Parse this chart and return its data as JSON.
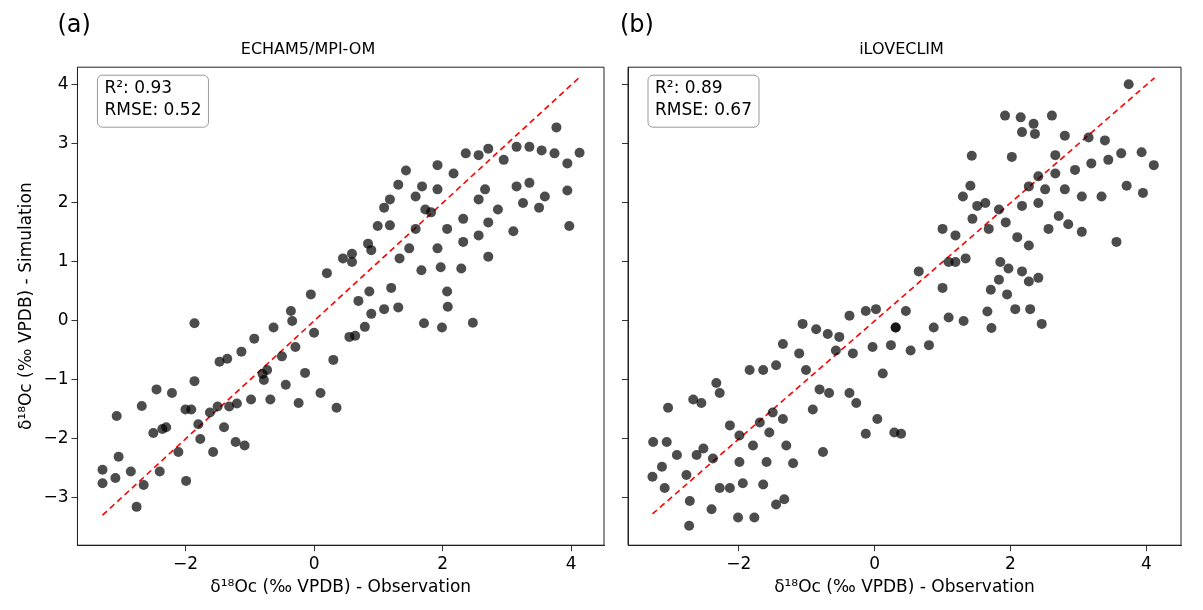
{
  "chart_data": [
    {
      "type": "scatter",
      "title": "ECHAM5/MPI-OM",
      "xlabel": "δ¹⁸Oc (‰ VPDB) - Observation",
      "ylabel": "δ¹⁸Oc (‰ VPDB) - Simulation",
      "annotations": [
        "(a)",
        "R²: 0.93",
        "RMSE: 0.52"
      ],
      "xlim": [
        -3.68,
        4.51
      ],
      "ylim": [
        -3.8,
        4.3
      ],
      "xticks": [
        -2,
        0,
        2,
        4
      ],
      "yticks": [
        -3,
        -2,
        -1,
        0,
        1,
        2,
        3,
        4
      ],
      "grid": false,
      "legend": false,
      "marker": "circle",
      "series": [
        {
          "color": "#000000",
          "x": [
            -3.29,
            -3.29,
            -3.07,
            -2.76,
            -3.09,
            -2.85,
            -2.65,
            -2.4,
            -1.99,
            -3.04,
            -2.68,
            -2.45,
            -1.86,
            -1.86,
            -2.21,
            -1.91,
            -1.62,
            -1.32,
            -2.36,
            -1.77,
            -1.57,
            -1.08,
            -1.22,
            -2.11,
            -1.47,
            -1.35,
            -1.13,
            -0.93,
            -0.63,
            -0.34,
            -0.36,
            -0.05,
            0.2,
            0.45,
            0.59,
            0.55,
            0.3,
            0.1,
            0.35,
            -0.24,
            -0.68,
            -0.78,
            -0.14,
            -0.44,
            -0.98,
            -0.73,
            -0.29,
            0.84,
            0.99,
            1.09,
            1.31,
            1.43,
            1.18,
            1.33,
            1.67,
            1.97,
            2.29,
            2.07,
            2.08,
            1.71,
            1.99,
            2.47,
            2.71,
            0.64,
            0.79,
            0.89,
            1.09,
            1.31,
            1.2,
            0.69,
            0.86,
            1.58,
            1.82,
            2.07,
            2.32,
            1.92,
            2.17,
            1.92,
            2.36,
            2.56,
            2.71,
            2.95,
            3.15,
            3.35,
            3.54,
            3.74,
            3.94,
            4.13,
            3.77,
            3.94,
            3.97,
            3.1,
            3.5,
            3.25,
            2.86,
            2.66,
            2.56,
            3.15,
            3.35,
            3.59,
            2.56,
            2.71,
            2.32,
            1.73,
            1.58,
            1.68,
            1.18,
            1.48,
            1.92,
            0.89,
            0.59,
            -2.0,
            -1.5,
            -1.8,
            -1.4,
            -2.3,
            -2.5,
            -1.2,
            -0.8,
            -0.5,
            0.0
          ],
          "values": [
            -2.52,
            -2.75,
            -1.61,
            -3.15,
            -2.66,
            -2.55,
            -2.78,
            -2.55,
            -2.71,
            -2.3,
            -1.44,
            -1.16,
            -0.04,
            -1.02,
            -1.22,
            -1.5,
            -1.55,
            -1.45,
            -1.83,
            -2.0,
            -2.22,
            -2.11,
            -2.05,
            -2.22,
            -0.69,
            -0.64,
            -0.52,
            -0.3,
            -0.11,
            0.0,
            0.17,
            0.45,
            0.81,
            1.06,
            1.14,
            -0.27,
            -0.66,
            -1.22,
            -1.47,
            -1.39,
            -1.33,
            -1.0,
            -0.88,
            -1.08,
            -1.33,
            -0.83,
            -0.44,
            1.31,
            1.61,
            1.92,
            2.31,
            2.55,
            1.62,
            1.06,
            0.86,
            0.91,
            0.89,
            0.5,
            0.24,
            -0.04,
            -0.11,
            -0.03,
            1.09,
            -0.25,
            -0.1,
            0.12,
            0.2,
            0.23,
            0.56,
            0.34,
            0.5,
            1.56,
            1.84,
            1.56,
            1.73,
            2.23,
            2.5,
            2.64,
            2.84,
            2.81,
            2.92,
            2.73,
            2.95,
            2.95,
            2.89,
            2.84,
            2.67,
            2.85,
            3.28,
            2.21,
            1.61,
            1.52,
            1.92,
            2.0,
            1.89,
            2.23,
            2.06,
            2.28,
            2.34,
            2.11,
            1.45,
            1.67,
            1.34,
            1.89,
            2.11,
            2.28,
            2.06,
            1.23,
            1.23,
            1.2,
            1.0,
            -1.5,
            -1.45,
            -1.75,
            -1.8,
            -1.8,
            -1.9,
            -1.4,
            -0.9,
            -0.6,
            -0.2
          ]
        },
        {
          "type": "line",
          "color": "#ff0000",
          "marker": "none",
          "line_style": "dashed",
          "x": [
            -3.29,
            4.13
          ],
          "values": [
            -3.29,
            4.13
          ]
        }
      ]
    },
    {
      "type": "scatter",
      "title": "iLOVECLIM",
      "xlabel": "δ¹⁸Oc (‰ VPDB) - Observation",
      "annotations": [
        "(b)",
        "R²: 0.89",
        "RMSE: 0.67"
      ],
      "xlim": [
        -3.63,
        4.51
      ],
      "ylim": [
        -3.8,
        4.3
      ],
      "xticks": [
        -2,
        0,
        2,
        4
      ],
      "yticks": [
        -3,
        -2,
        -1,
        0,
        1,
        2,
        3,
        4
      ],
      "tick_labels": "x",
      "grid": false,
      "legend": false,
      "marker": "circle",
      "series": [
        {
          "color": "#000000",
          "x": [
            -3.27,
            -3.26,
            -3.09,
            -3.04,
            -2.73,
            -2.72,
            -2.67,
            -2.55,
            -2.4,
            -2.33,
            -2.28,
            -2.13,
            -2.01,
            -1.84,
            -1.77,
            -1.64,
            -1.45,
            -1.33,
            -1.35,
            -1.06,
            -0.86,
            -0.69,
            -0.52,
            -0.37,
            -0.13,
            0.02,
            0.31,
            0.12,
            -0.13,
            0.04,
            -0.37,
            -0.27,
            -0.67,
            -0.91,
            -0.76,
            -1.11,
            -1.01,
            -0.81,
            -0.57,
            -0.32,
            -0.03,
            -2.13,
            -1.99,
            -1.79,
            -1.55,
            -1.3,
            -1.2,
            -1.69,
            -1.5,
            -1.35,
            -2.52,
            -2.77,
            -2.91,
            -2.38,
            -2.62,
            -2.28,
            -1.94,
            -1.64,
            -1.45,
            -1.99,
            -1.59,
            -3.13,
            -3.06,
            0.29,
            0.39,
            0.24,
            0.53,
            0.8,
            0.31,
            0.46,
            0.65,
            0.87,
            1.09,
            1.31,
            1.0,
            1.0,
            1.19,
            1.09,
            1.3,
            1.41,
            1.43,
            1.51,
            1.44,
            1.68,
            1.66,
            1.72,
            1.71,
            1.83,
            1.85,
            1.97,
            1.95,
            2.07,
            2.29,
            2.46,
            2.41,
            2.17,
            2.27,
            1.92,
            2.15,
            2.34,
            2.61,
            2.17,
            2.36,
            2.02,
            2.66,
            2.8,
            3.15,
            3.39,
            3.74,
            4.11,
            3.93,
            3.63,
            3.44,
            3.19,
            2.95,
            2.66,
            2.41,
            2.27,
            2.51,
            2.8,
            3.05,
            3.34,
            3.71,
            3.95,
            3.56,
            3.05,
            2.85,
            2.56,
            2.27,
            2.1,
            1.93,
            1.83,
            1.63,
            2.17,
            2.41,
            2.71,
            1.34,
            1.19
          ],
          "values": [
            -2.64,
            -2.05,
            -2.83,
            -1.47,
            -3.47,
            -3.05,
            -1.33,
            -1.39,
            -3.19,
            -1.05,
            -1.22,
            -2.83,
            -3.33,
            -0.83,
            -3.33,
            -0.83,
            -0.75,
            -3.02,
            -0.39,
            -0.05,
            -0.14,
            -0.22,
            -0.27,
            0.09,
            0.17,
            0.2,
            -0.11,
            -0.89,
            -1.91,
            -1.66,
            -1.22,
            -1.39,
            -1.22,
            -1.5,
            -2.22,
            -0.55,
            -0.83,
            -1.16,
            -0.5,
            -0.55,
            -0.44,
            -1.77,
            -1.94,
            -2.11,
            -1.89,
            -2.11,
            -2.41,
            -1.72,
            -1.55,
            -1.66,
            -2.16,
            -2.61,
            -2.27,
            -2.33,
            -2.27,
            -2.83,
            -2.75,
            -2.77,
            -3.11,
            -2.39,
            -2.39,
            -2.47,
            -2.05,
            -1.89,
            -1.91,
            -0.41,
            -0.5,
            -0.41,
            -0.11,
            0.17,
            0.84,
            -0.11,
            0.06,
            0.0,
            0.56,
            1.56,
            1.45,
            1.0,
            2.11,
            2.29,
            2.8,
            1.95,
            1.73,
            1.56,
            0.16,
            -0.12,
            0.53,
            0.7,
            1.0,
            0.89,
            0.45,
            0.2,
            0.2,
            -0.05,
            0.73,
            0.84,
            0.67,
            3.48,
            3.45,
            3.34,
            3.48,
            3.2,
            3.17,
            2.78,
            2.81,
            3.14,
            3.11,
            3.06,
            4.01,
            2.64,
            2.86,
            2.84,
            2.73,
            2.67,
            2.56,
            2.5,
            2.45,
            2.28,
            2.23,
            2.23,
            2.11,
            2.11,
            2.29,
            2.17,
            1.34,
            1.51,
            1.64,
            1.56,
            1.28,
            1.42,
            1.67,
            1.89,
            2.0,
            1.95,
            2.0,
            1.78,
            1.06,
            1.0
          ]
        },
        {
          "type": "line",
          "color": "#ff0000",
          "marker": "none",
          "line_style": "dashed",
          "x": [
            -3.27,
            4.12
          ],
          "values": [
            -3.27,
            4.12
          ]
        }
      ]
    }
  ]
}
